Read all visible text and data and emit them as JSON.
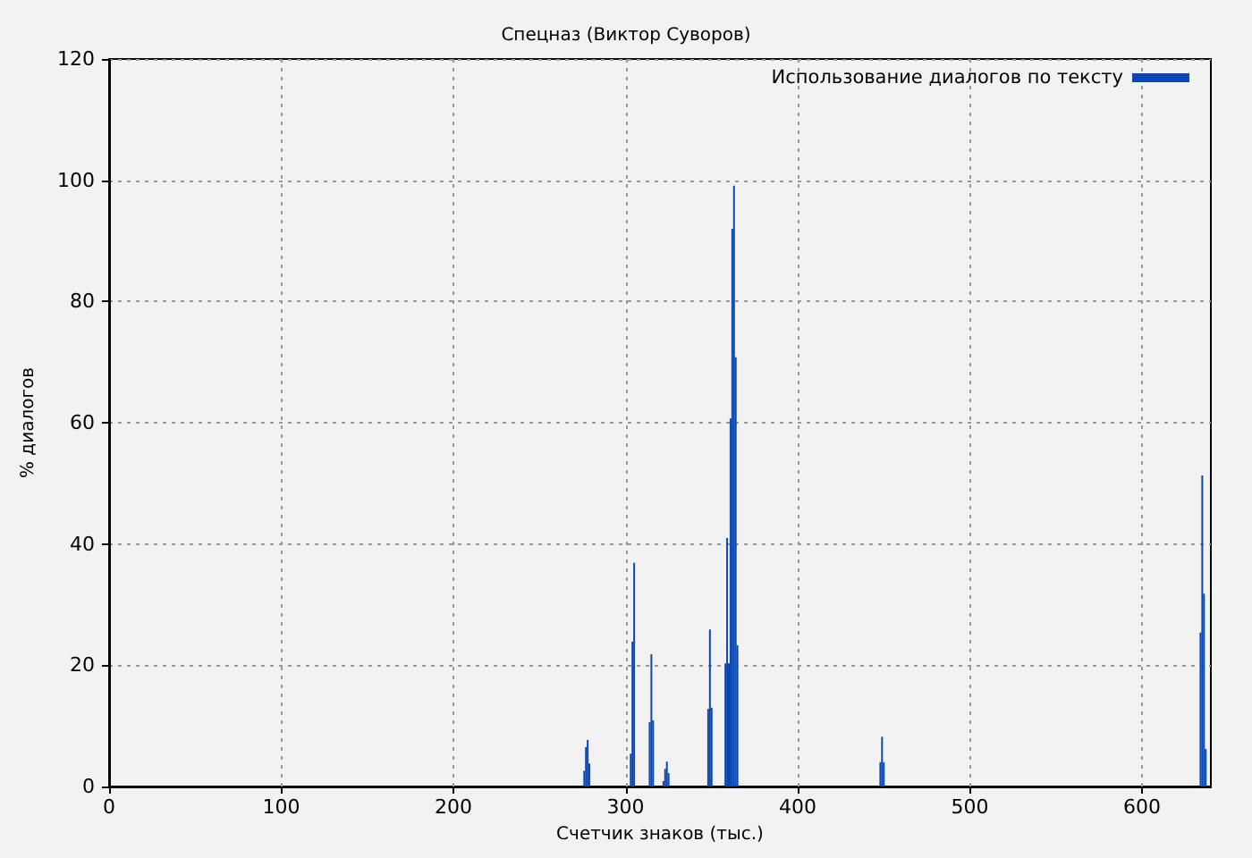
{
  "chart_data": {
    "type": "bar",
    "title": "Спецназ (Виктор Суворов)",
    "xlabel": "Счетчик знаков (тыс.)",
    "ylabel": "% диалогов",
    "x": [
      276,
      277,
      278,
      279,
      303,
      304,
      305,
      314,
      315,
      316,
      322,
      323,
      324,
      325,
      348,
      349,
      350,
      358,
      359,
      360,
      361,
      362,
      363,
      364,
      365,
      448,
      449,
      450,
      634,
      635,
      636,
      637
    ],
    "series": [
      {
        "name": "Использование диалогов по тексту",
        "color": "#0a47b1",
        "values": [
          2.6,
          6.5,
          7.7,
          3.8,
          5.4,
          23.9,
          36.9,
          10.6,
          21.8,
          10.9,
          0.9,
          2.9,
          4.1,
          2.2,
          12.8,
          25.9,
          13.0,
          20.3,
          41.0,
          20.3,
          60.7,
          92.0,
          99.1,
          70.8,
          23.3,
          4.0,
          8.2,
          4.0,
          25.4,
          51.3,
          31.8,
          6.2
        ]
      }
    ],
    "xlim": [
      0,
      640
    ],
    "xticks": [
      0,
      100,
      200,
      300,
      400,
      500,
      600
    ],
    "ylim": [
      0,
      120
    ],
    "yticks": [
      0,
      20,
      40,
      60,
      80,
      100,
      120
    ],
    "grid": true,
    "legend": "top right"
  }
}
